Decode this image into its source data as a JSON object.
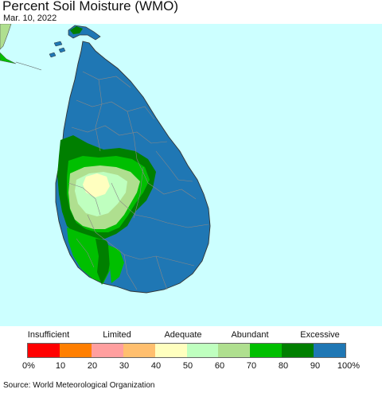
{
  "title": "Percent Soil Moisture (WMO)",
  "date": "Mar. 10, 2022",
  "legend": {
    "categories": [
      "Insufficient",
      "Limited",
      "Adequate",
      "Abundant",
      "Excessive"
    ],
    "ticks": [
      "0%",
      "10",
      "20",
      "30",
      "40",
      "50",
      "60",
      "70",
      "80",
      "90",
      "100%"
    ],
    "colors": [
      "#ff0000",
      "#ff7f00",
      "#ff9f9f",
      "#ffbf6f",
      "#ffffbf",
      "#bfffbf",
      "#afdf8f",
      "#00bf00",
      "#007f00",
      "#1f77b4"
    ]
  },
  "map_colors": {
    "ocean": "#ccffff",
    "land_excessive": "#1f77b4",
    "land_80_90": "#007f00",
    "land_70_80": "#00bf00",
    "land_60_70": "#afdf8f",
    "land_50_60": "#bfffbf",
    "land_40_50": "#ffffbf",
    "boundary": "#888888"
  },
  "source": "Source: World Meteorological Organization"
}
